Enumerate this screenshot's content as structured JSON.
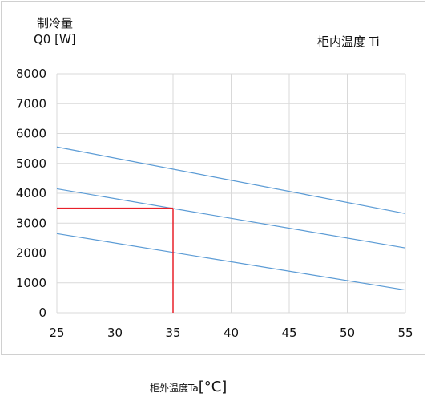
{
  "chart_data": {
    "type": "line",
    "ylabel": [
      "制冷量",
      "Q0 [W]"
    ],
    "legend_title": "柜内温度  Ti",
    "xlabel": "柜外温度Ta",
    "xlabel_unit": "[°C]",
    "xlim": [
      25,
      55
    ],
    "ylim": [
      0,
      8000
    ],
    "x_ticks": [
      25,
      30,
      35,
      40,
      45,
      50,
      55
    ],
    "y_ticks": [
      0,
      1000,
      2000,
      3000,
      4000,
      5000,
      6000,
      7000,
      8000
    ],
    "grid": true,
    "series": [
      {
        "x": [
          25,
          55
        ],
        "values": [
          5550,
          3320
        ],
        "color": "#5b9bd5"
      },
      {
        "x": [
          25,
          55
        ],
        "values": [
          4150,
          2170
        ],
        "color": "#5b9bd5"
      },
      {
        "x": [
          25,
          55
        ],
        "values": [
          2650,
          760
        ],
        "color": "#5b9bd5"
      }
    ],
    "annotation": {
      "x": 35,
      "y": 3500,
      "color": "#e8202a"
    }
  }
}
